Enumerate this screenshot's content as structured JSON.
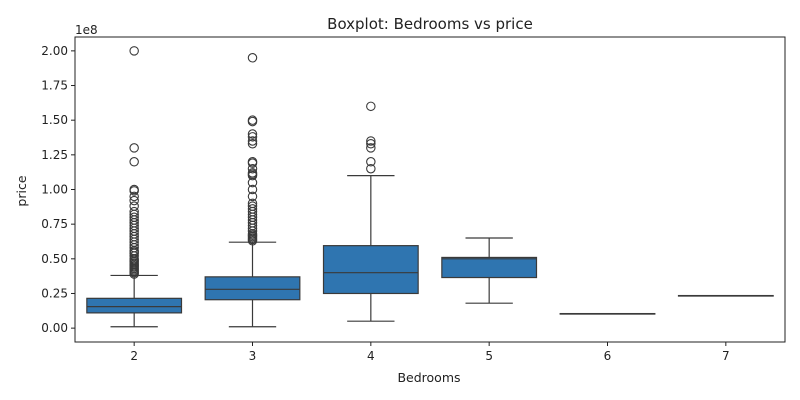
{
  "chart_data": {
    "type": "box",
    "title": "Boxplot: Bedrooms vs price",
    "xlabel": "Bedrooms",
    "ylabel": "price",
    "y_offset_label": "1e8",
    "ylim": [
      -0.1,
      2.1
    ],
    "yticks": [
      0.0,
      0.25,
      0.5,
      0.75,
      1.0,
      1.25,
      1.5,
      1.75,
      2.0
    ],
    "ytick_labels": [
      "0.00",
      "0.25",
      "0.50",
      "0.75",
      "1.00",
      "1.25",
      "1.50",
      "1.75",
      "2.00"
    ],
    "categories": [
      "2",
      "3",
      "4",
      "5",
      "6",
      "7"
    ],
    "box_color": "#2f75b0",
    "boxes": [
      {
        "category": "2",
        "whisker_low": 0.01,
        "q1": 0.11,
        "median": 0.155,
        "q3": 0.215,
        "whisker_high": 0.38,
        "outliers": [
          2.0,
          1.3,
          1.2,
          1.0,
          0.99,
          0.95,
          0.92,
          0.88,
          0.84,
          0.82,
          0.8,
          0.78,
          0.76,
          0.74,
          0.72,
          0.7,
          0.68,
          0.66,
          0.64,
          0.62,
          0.6,
          0.58,
          0.56,
          0.55,
          0.54,
          0.52,
          0.5,
          0.49,
          0.48,
          0.47,
          0.46,
          0.45,
          0.44,
          0.43,
          0.42,
          0.41,
          0.4,
          0.39
        ]
      },
      {
        "category": "3",
        "whisker_low": 0.01,
        "q1": 0.205,
        "median": 0.28,
        "q3": 0.37,
        "whisker_high": 0.62,
        "outliers": [
          1.95,
          1.5,
          1.49,
          1.4,
          1.38,
          1.35,
          1.33,
          1.2,
          1.19,
          1.15,
          1.12,
          1.11,
          1.1,
          1.05,
          1.0,
          0.95,
          0.9,
          0.88,
          0.86,
          0.84,
          0.82,
          0.8,
          0.78,
          0.76,
          0.74,
          0.72,
          0.7,
          0.68,
          0.67,
          0.66,
          0.65,
          0.64,
          0.63
        ]
      },
      {
        "category": "4",
        "whisker_low": 0.05,
        "q1": 0.25,
        "median": 0.4,
        "q3": 0.595,
        "whisker_high": 1.1,
        "outliers": [
          1.6,
          1.35,
          1.33,
          1.3,
          1.2,
          1.15
        ]
      },
      {
        "category": "5",
        "whisker_low": 0.18,
        "q1": 0.365,
        "median": 0.5,
        "q3": 0.51,
        "whisker_high": 0.65,
        "outliers": []
      },
      {
        "category": "6",
        "whisker_low": 0.105,
        "q1": 0.105,
        "median": 0.105,
        "q3": 0.105,
        "whisker_high": 0.105,
        "outliers": []
      },
      {
        "category": "7",
        "whisker_low": 0.235,
        "q1": 0.235,
        "median": 0.235,
        "q3": 0.235,
        "whisker_high": 0.235,
        "outliers": []
      }
    ]
  }
}
